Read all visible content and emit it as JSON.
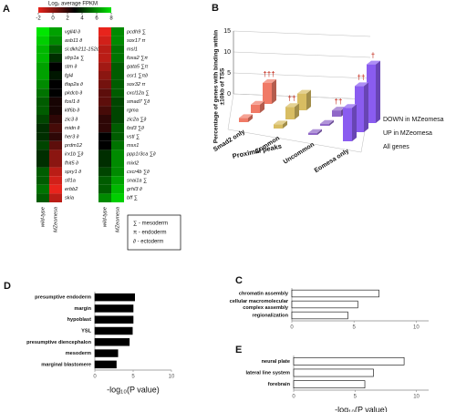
{
  "chart_data": [
    {
      "type": "heatmap",
      "panel": "A",
      "title": "Log₂ average FPKM",
      "colorbar": {
        "lim": [
          -2,
          8
        ],
        "ticks": [
          -2,
          0,
          2,
          4,
          6,
          8
        ],
        "colors": [
          "#e8241c",
          "#000000",
          "#00e600"
        ]
      },
      "columns": [
        "wild-type",
        "MZeomesa"
      ],
      "sides": [
        {
          "rows": [
            "vgll4l ∂",
            "asb11 ∂",
            "si:dkh211-152c2.3",
            "sfrp1a ∑",
            "stm ∂",
            "fgl4",
            "tfap2a ∂",
            "pkdcb ∂",
            "fosl1 ∂",
            "klf6b ∂",
            "zic3 ∂",
            "midn ∂",
            "her3 ∂",
            "prdm12",
            "irx1b ∑∂",
            "fhit5 ∂",
            "spry1 ∂",
            "sfl1a",
            "erbb2",
            "skia"
          ],
          "values": [
            [
              8,
              6.5
            ],
            [
              7.5,
              6
            ],
            [
              7,
              5
            ],
            [
              7,
              4
            ],
            [
              6.5,
              3
            ],
            [
              6.5,
              3.5
            ],
            [
              6,
              3
            ],
            [
              5.5,
              3
            ],
            [
              5,
              2.5
            ],
            [
              5,
              2.5
            ],
            [
              4.5,
              2
            ],
            [
              4,
              1.5
            ],
            [
              4,
              2
            ],
            [
              4.5,
              1
            ],
            [
              4,
              0
            ],
            [
              4,
              0
            ],
            [
              5,
              -1
            ],
            [
              5,
              -1.5
            ],
            [
              5.5,
              -2
            ],
            [
              5,
              -1
            ]
          ]
        },
        {
          "rows": [
            "pcdh9 ∑",
            "sox17 π",
            "msl1",
            "foxa2 ∑π",
            "gata5 ∑π",
            "osr1 ∑π∂",
            "sox32 π",
            "cxcl12a ∑",
            "smad7 ∑∂",
            "rgma",
            "zic2a ∑∂",
            "fzd3 ∑∂",
            "vstl ∑",
            "msx1",
            "ppp1r3ca ∑∂",
            "mixl2",
            "cxcr4b ∑∂",
            "snai1a ∑",
            "grhl3 ∂",
            "bff ∑"
          ],
          "values": [
            [
              -2,
              6
            ],
            [
              -1.5,
              6
            ],
            [
              -1,
              5.5
            ],
            [
              -1,
              5.5
            ],
            [
              -0.5,
              5
            ],
            [
              0,
              5
            ],
            [
              0.5,
              5
            ],
            [
              1,
              5
            ],
            [
              1,
              4.5
            ],
            [
              1.5,
              4.5
            ],
            [
              2,
              4.5
            ],
            [
              2,
              5
            ],
            [
              3,
              5
            ],
            [
              3,
              5.5
            ],
            [
              4,
              6
            ],
            [
              4,
              6
            ],
            [
              4.5,
              6
            ],
            [
              5,
              6.5
            ],
            [
              5,
              7
            ],
            [
              6,
              7.5
            ]
          ]
        }
      ],
      "legend": [
        "∑ - mesoderm",
        "π - endoderm",
        "∂ - ectoderm"
      ]
    },
    {
      "type": "bar3d",
      "panel": "B",
      "ylabel": [
        "Percentage of genes with binding within",
        "±10kb of TSS"
      ],
      "xlabel": "Proximal peaks",
      "categories": [
        "Smad2 only",
        "Common",
        "Uncommon",
        "Eomesa only"
      ],
      "colors": [
        "#f07a66",
        "#d8bd62",
        "#9068c8",
        "#8a5cf0"
      ],
      "series": [
        {
          "name": "All genes",
          "values": [
            1,
            1,
            0.5,
            8
          ],
          "annotations": [
            null,
            null,
            null,
            null
          ]
        },
        {
          "name": "UP in MZeomesa",
          "values": [
            2,
            3,
            0.5,
            11
          ],
          "annotations": [
            null,
            "††",
            null,
            "††"
          ]
        },
        {
          "name": "DOWN in MZeomesa",
          "values": [
            5,
            4,
            1.5,
            14
          ],
          "annotations": [
            "†††",
            null,
            "††",
            "†"
          ]
        }
      ],
      "ylim": [
        0,
        15
      ],
      "yticks": [
        0,
        5,
        10,
        15
      ]
    },
    {
      "type": "barh",
      "panel": "C",
      "color": "#ffffff",
      "categories": [
        "chromatin assembly",
        [
          "cellular macromolecular",
          "complex assembly"
        ],
        "regionalization"
      ],
      "values": [
        7,
        5.3,
        4.5
      ],
      "xlim": [
        0,
        11
      ],
      "xticks": [
        0,
        5,
        10
      ]
    },
    {
      "type": "barh",
      "panel": "D",
      "color": "#000000",
      "categories": [
        "presumptive endoderm",
        "margin",
        "hypoblast",
        "YSL",
        "presumptive diencephalon",
        "mesoderm",
        "marginal blastomere"
      ],
      "values": [
        5.2,
        5,
        5,
        4.9,
        4.5,
        3,
        2.8
      ],
      "xlim": [
        0,
        10
      ],
      "xticks": [
        0,
        5,
        10
      ],
      "xlabel": "-log₁₀(P value)"
    },
    {
      "type": "barh",
      "panel": "E",
      "color": "#ffffff",
      "categories": [
        "neural plate",
        "lateral line system",
        "forebrain"
      ],
      "values": [
        9,
        6.5,
        5.8
      ],
      "xlim": [
        0,
        11
      ],
      "xticks": [
        0,
        5,
        10
      ],
      "xlabel": "-log₁₀(P value)"
    }
  ]
}
